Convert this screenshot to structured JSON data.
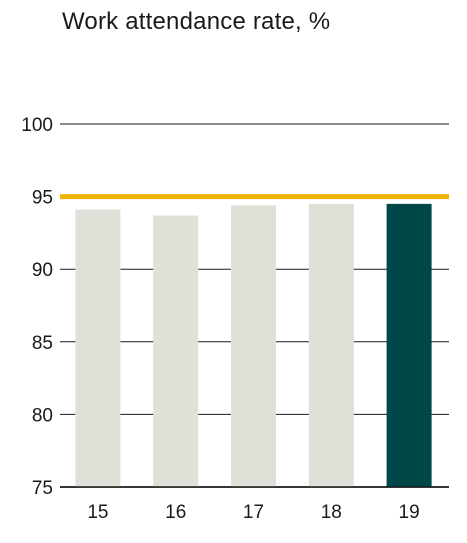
{
  "chart_data": {
    "type": "bar",
    "title": "Work attendance rate, %",
    "categories": [
      "15",
      "16",
      "17",
      "18",
      "19"
    ],
    "values": [
      94.1,
      93.7,
      94.4,
      94.5,
      94.5
    ],
    "ylim": [
      75,
      100
    ],
    "yticks": [
      "75",
      "80",
      "85",
      "90",
      "95",
      "100"
    ],
    "target_line": 95,
    "grid": true,
    "colors": {
      "bar": "#e0e0d8",
      "highlight_bar": "#00474a",
      "target_line": "#f0b400",
      "grid": "#1a1a1a"
    },
    "highlight_index": 4
  }
}
